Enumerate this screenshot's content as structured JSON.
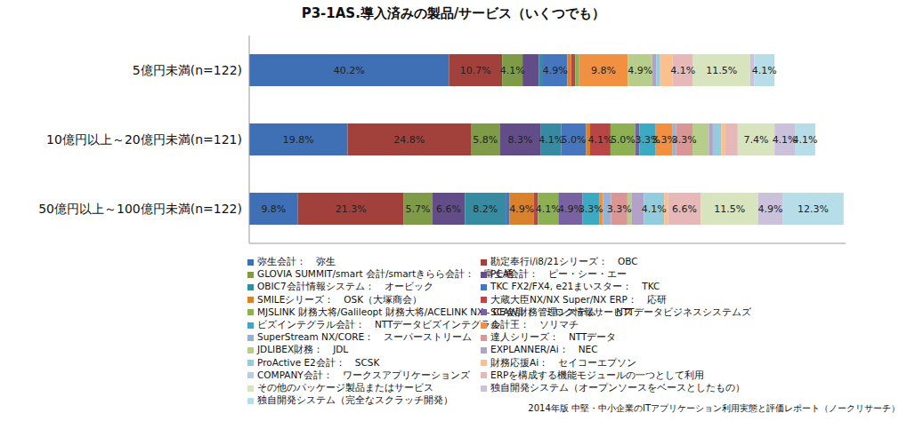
{
  "chart_data": {
    "type": "bar",
    "title": "P3-1AS.導入済みの製品/サービス（いくつでも）",
    "note": "2014年版 中堅・中小企業のITアプリケーション利用実態と評価レポート（ノークリサーチ）",
    "orientation": "horizontal",
    "stacked": true,
    "data_labels": true,
    "tick_labels": "y",
    "grid": false,
    "legend": "bottom",
    "xlim": [
      0,
      120
    ],
    "xticks": [],
    "categories": [
      "5億円未満(n=122)",
      "10億円以上～20億円未満(n=121)",
      "50億円以上～100億円未満(n=122)"
    ],
    "series": [
      {
        "name": "弥生会計：　弥生",
        "color": "#3F6FB5",
        "values": [
          40.2,
          19.8,
          9.8
        ],
        "value_labels": [
          "40.2%",
          "19.8%",
          "9.8%"
        ]
      },
      {
        "name": "勘定奉行i/i8/21シリーズ：　OBC",
        "color": "#A2403C",
        "values": [
          10.7,
          24.8,
          21.3
        ],
        "value_labels": [
          "10.7%",
          "24.8%",
          "21.3%"
        ]
      },
      {
        "name": "GLOVIA SUMMIT/smart 会計/smartきらら会計：　富士通",
        "color": "#7F9B47",
        "values": [
          4.1,
          5.8,
          5.7
        ],
        "value_labels": [
          "4.1%",
          "5.8%",
          "5.7%"
        ]
      },
      {
        "name": "PCA会計：　ピー・シー・エー",
        "color": "#634D89",
        "values": [
          3.3,
          8.3,
          6.6
        ],
        "value_labels": [
          null,
          "8.3%",
          "6.6%"
        ]
      },
      {
        "name": "OBIC7会計情報システム：　オービック",
        "color": "#368BA1",
        "values": [
          0.8,
          4.1,
          8.2
        ],
        "value_labels": [
          null,
          "4.1%",
          "8.2%"
        ]
      },
      {
        "name": "TKC FX2/FX4, e21まいスター：　TKC",
        "color": "#4677BE",
        "values": [
          4.9,
          5.0,
          0.8
        ],
        "value_labels": [
          "4.9%",
          "5.0%",
          null
        ]
      },
      {
        "name": "SMILEシリーズ：　OSK（大塚商会）",
        "color": "#D9822B",
        "values": [
          0.8,
          0.8,
          4.9
        ],
        "value_labels": [
          null,
          null,
          "4.9%"
        ]
      },
      {
        "name": "大蔵大臣NX/NX Super/NX ERP：　応研",
        "color": "#B84646",
        "values": [
          0.8,
          4.1,
          0.8
        ],
        "value_labels": [
          null,
          "4.1%",
          null
        ]
      },
      {
        "name": "MJSLINK 財務大将/Galileopt 財務大将/ACELINK NX - CE会計：　ミロク情報サービス",
        "color": "#8DB052",
        "values": [
          0.8,
          5.0,
          4.1
        ],
        "value_labels": [
          null,
          "5.0%",
          "4.1%"
        ]
      },
      {
        "name": "SCAW財務管理システム：　NTTデータビジネスシステムズ",
        "color": "#7962A1",
        "values": [
          0,
          0.8,
          4.9
        ],
        "value_labels": [
          null,
          null,
          "4.9%"
        ]
      },
      {
        "name": "ビズインテグラル会計：　NTTデータビズインテグラル",
        "color": "#3BAAC2",
        "values": [
          0,
          3.3,
          3.3
        ],
        "value_labels": [
          null,
          "3.3%",
          "3.3%"
        ]
      },
      {
        "name": "会計王：　ソリマチ",
        "color": "#F29042",
        "values": [
          9.8,
          3.3,
          0.8
        ],
        "value_labels": [
          "9.8%",
          "3.3%",
          null
        ]
      },
      {
        "name": "SuperStream NX/CORE：　スーパーストリーム",
        "color": "#95B3D7",
        "values": [
          0,
          0.8,
          1.6
        ],
        "value_labels": [
          null,
          null,
          null
        ]
      },
      {
        "name": "達人シリーズ：　NTTデータ",
        "color": "#D99694",
        "values": [
          0,
          3.3,
          3.3
        ],
        "value_labels": [
          null,
          "3.3%",
          "3.3%"
        ]
      },
      {
        "name": "JDLIBEX財務：　JDL",
        "color": "#B7CE8A",
        "values": [
          4.9,
          3.3,
          0.8
        ],
        "value_labels": [
          "4.9%",
          null,
          null
        ]
      },
      {
        "name": "EXPLANNER/Ai：　NEC",
        "color": "#B3A2C7",
        "values": [
          0.8,
          0.8,
          2.5
        ],
        "value_labels": [
          null,
          null,
          null
        ]
      },
      {
        "name": "ProActive E2会計：　SCSK",
        "color": "#93CDDD",
        "values": [
          0.8,
          1.7,
          4.1
        ],
        "value_labels": [
          null,
          null,
          "4.1%"
        ]
      },
      {
        "name": "財務応援Ai：　セイコーエプソン",
        "color": "#FAC090",
        "values": [
          2.5,
          0.8,
          0.8
        ],
        "value_labels": [
          null,
          null,
          null
        ]
      },
      {
        "name": "COMPANY会計：　ワークスアプリケーションズ",
        "color": "#B9CDE5",
        "values": [
          0,
          0,
          0
        ],
        "value_labels": [
          null,
          null,
          null
        ]
      },
      {
        "name": "ERPを構成する機能モジュールの一つとして利用",
        "color": "#E6B9B8",
        "values": [
          4.1,
          2.5,
          6.6
        ],
        "value_labels": [
          "4.1%",
          null,
          "6.6%"
        ]
      },
      {
        "name": "その他のパッケージ製品またはサービス",
        "color": "#D7E4BD",
        "values": [
          11.5,
          7.4,
          11.5
        ],
        "value_labels": [
          "11.5%",
          "7.4%",
          "11.5%"
        ]
      },
      {
        "name": "独自開発システム（オープンソースをベースとしたもの）",
        "color": "#CCC1DA",
        "values": [
          0.8,
          4.1,
          4.9
        ],
        "value_labels": [
          null,
          "4.1%",
          "4.9%"
        ]
      },
      {
        "name": "独自開発システム（完全なスクラッチ開発）",
        "color": "#B7DEE8",
        "values": [
          4.1,
          4.1,
          12.3
        ],
        "value_labels": [
          "4.1%",
          "4.1%",
          "12.3%"
        ]
      }
    ]
  }
}
